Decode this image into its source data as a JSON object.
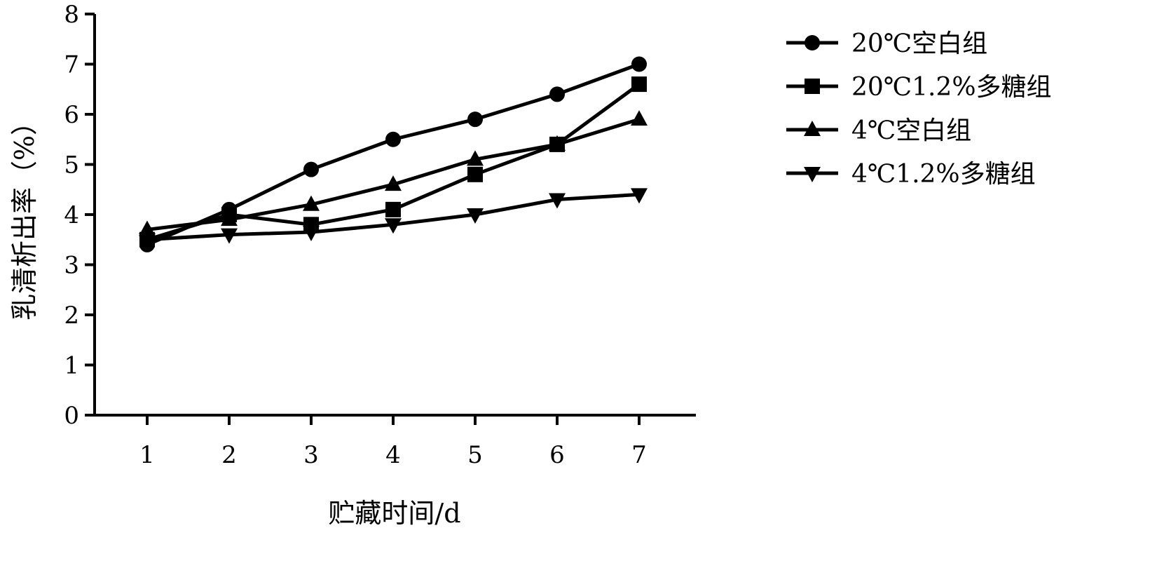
{
  "chart_data": {
    "type": "line",
    "xlabel": "贮藏时间/d",
    "ylabel": "乳清析出率（%）",
    "x": [
      1,
      2,
      3,
      4,
      5,
      6,
      7
    ],
    "xticks": [
      "1",
      "2",
      "3",
      "4",
      "5",
      "6",
      "7"
    ],
    "yticks": [
      "0",
      "1",
      "2",
      "3",
      "4",
      "5",
      "6",
      "7",
      "8"
    ],
    "ylim": [
      0,
      8
    ],
    "grid": false,
    "legend_position": "right",
    "series": [
      {
        "name": "20℃空白组",
        "marker": "circle",
        "values": [
          3.4,
          4.1,
          4.9,
          5.5,
          5.9,
          6.4,
          7.0
        ]
      },
      {
        "name": "20℃1.2%多糖组",
        "marker": "square",
        "values": [
          3.5,
          4.0,
          3.8,
          4.1,
          4.8,
          5.4,
          6.6
        ]
      },
      {
        "name": "4℃空白组",
        "marker": "triangle-up",
        "values": [
          3.7,
          3.9,
          4.2,
          4.6,
          5.1,
          5.4,
          5.9
        ]
      },
      {
        "name": "4℃1.2%多糖组",
        "marker": "triangle-down",
        "values": [
          3.5,
          3.6,
          3.65,
          3.8,
          4.0,
          4.3,
          4.4
        ]
      }
    ],
    "color": "#000000"
  }
}
